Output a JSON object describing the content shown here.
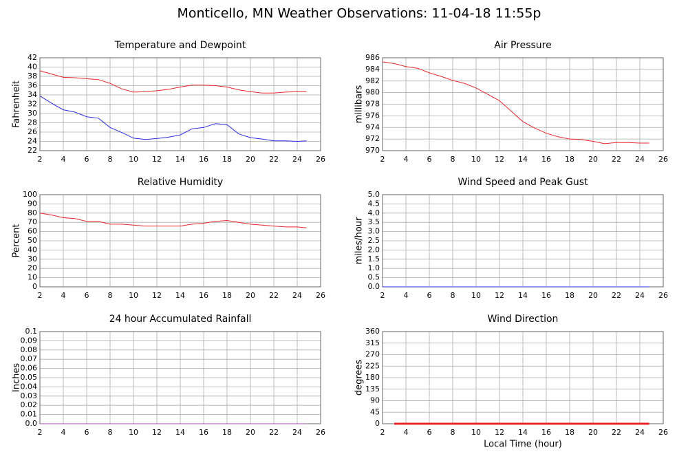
{
  "title": "Monticello, MN Weather Observations: 11-04-18 11:55p",
  "chart_data": [
    {
      "type": "line",
      "title": "Temperature and Dewpoint",
      "ylabel": "Fahrenheit",
      "x": [
        2,
        3,
        4,
        5,
        6,
        7,
        8,
        9,
        10,
        11,
        12,
        13,
        14,
        15,
        16,
        17,
        18,
        19,
        20,
        21,
        22,
        23,
        24,
        24.8
      ],
      "series": [
        {
          "color": "#e8262a",
          "values": [
            39.2,
            38.5,
            37.8,
            37.7,
            37.5,
            37.3,
            36.5,
            35.3,
            34.6,
            34.7,
            34.9,
            35.2,
            35.7,
            36.1,
            36.1,
            36.0,
            35.7,
            35.1,
            34.7,
            34.4,
            34.4,
            34.6,
            34.7,
            34.7
          ]
        },
        {
          "color": "#2a2ae0",
          "values": [
            33.8,
            32.2,
            30.8,
            30.3,
            29.3,
            29.0,
            27.0,
            25.9,
            24.7,
            24.4,
            24.6,
            24.9,
            25.4,
            26.7,
            27.0,
            27.8,
            27.6,
            25.6,
            24.8,
            24.5,
            24.1,
            24.1,
            24.0,
            24.1
          ]
        }
      ],
      "xlim": [
        2,
        26
      ],
      "ylim": [
        22,
        42
      ],
      "xticks": [
        2,
        4,
        6,
        8,
        10,
        12,
        14,
        16,
        18,
        20,
        22,
        24,
        26
      ],
      "yticks": [
        22,
        24,
        26,
        28,
        30,
        32,
        34,
        36,
        38,
        40,
        42
      ],
      "grid": true
    },
    {
      "type": "line",
      "title": "Air Pressure",
      "ylabel": "millibars",
      "x": [
        2,
        3,
        4,
        5,
        6,
        7,
        8,
        9,
        10,
        11,
        12,
        13,
        14,
        15,
        16,
        17,
        18,
        19,
        20,
        21,
        22,
        23,
        24,
        24.8
      ],
      "series": [
        {
          "color": "#e8262a",
          "values": [
            985.3,
            985.0,
            984.5,
            984.2,
            983.4,
            982.8,
            982.1,
            981.6,
            980.8,
            979.7,
            978.6,
            976.8,
            975.0,
            973.9,
            973.0,
            972.4,
            972.0,
            971.9,
            971.6,
            971.2,
            971.4,
            971.4,
            971.3,
            971.3
          ]
        }
      ],
      "xlim": [
        2,
        26
      ],
      "ylim": [
        970,
        986
      ],
      "xticks": [
        2,
        4,
        6,
        8,
        10,
        12,
        14,
        16,
        18,
        20,
        22,
        24,
        26
      ],
      "yticks": [
        970,
        972,
        974,
        976,
        978,
        980,
        982,
        984,
        986
      ],
      "grid": true
    },
    {
      "type": "line",
      "title": "Relative Humidity",
      "ylabel": "Percent",
      "x": [
        2,
        3,
        4,
        5,
        6,
        7,
        8,
        9,
        10,
        11,
        12,
        13,
        14,
        15,
        16,
        17,
        18,
        19,
        20,
        21,
        22,
        23,
        24,
        24.8
      ],
      "series": [
        {
          "color": "#e8262a",
          "values": [
            80,
            78,
            75,
            74,
            71,
            71,
            68,
            68,
            67,
            66,
            66,
            66,
            66,
            68,
            69,
            71,
            72,
            70,
            68,
            67,
            66,
            65,
            65,
            64
          ]
        }
      ],
      "xlim": [
        2,
        26
      ],
      "ylim": [
        0,
        100
      ],
      "xticks": [
        2,
        4,
        6,
        8,
        10,
        12,
        14,
        16,
        18,
        20,
        22,
        24,
        26
      ],
      "yticks": [
        0,
        10,
        20,
        30,
        40,
        50,
        60,
        70,
        80,
        90,
        100
      ],
      "grid": true
    },
    {
      "type": "line",
      "title": "Wind Speed and Peak Gust",
      "ylabel": "miles/hour",
      "x": [
        2,
        24.8
      ],
      "series": [
        {
          "color": "#e8262a",
          "values": [
            0,
            0
          ]
        },
        {
          "color": "#2a2ae0",
          "values": [
            0,
            0
          ]
        }
      ],
      "xlim": [
        2,
        26
      ],
      "ylim": [
        0,
        5
      ],
      "xticks": [
        2,
        4,
        6,
        8,
        10,
        12,
        14,
        16,
        18,
        20,
        22,
        24,
        26
      ],
      "yticks": [
        {
          "value": 0,
          "label": "0.0"
        },
        0.5,
        {
          "value": 1,
          "label": "1.0"
        },
        1.5,
        {
          "value": 2,
          "label": "2.0"
        },
        2.5,
        {
          "value": 3,
          "label": "3.0"
        },
        3.5,
        {
          "value": 4,
          "label": "4.0"
        },
        4.5,
        {
          "value": 5,
          "label": "5.0"
        }
      ],
      "grid": true
    },
    {
      "type": "line",
      "title": "24 hour Accumulated Rainfall",
      "ylabel": "Inches",
      "x": [
        2,
        24.8
      ],
      "series": [
        {
          "color": "#b040c0",
          "values": [
            0,
            0
          ]
        }
      ],
      "xlim": [
        2,
        26
      ],
      "ylim": [
        0,
        0.1
      ],
      "xticks": [
        2,
        4,
        6,
        8,
        10,
        12,
        14,
        16,
        18,
        20,
        22,
        24,
        26
      ],
      "yticks": [
        {
          "value": 0,
          "label": "0.0"
        },
        0.01,
        0.02,
        0.03,
        0.04,
        0.05,
        0.06,
        0.07,
        0.08,
        0.09,
        0.1
      ],
      "grid": true
    },
    {
      "type": "line",
      "title": "Wind Direction",
      "ylabel": "degrees",
      "xlabel": "Local Time (hour)",
      "x": [
        3,
        24.8
      ],
      "series": [
        {
          "color": "#e8262a",
          "line_width": 3,
          "values": [
            0,
            0
          ]
        }
      ],
      "xlim": [
        2,
        26
      ],
      "ylim": [
        0,
        360
      ],
      "xticks": [
        2,
        4,
        6,
        8,
        10,
        12,
        14,
        16,
        18,
        20,
        22,
        24,
        26
      ],
      "yticks": [
        0,
        45,
        90,
        135,
        180,
        225,
        270,
        315,
        360
      ],
      "grid": true
    }
  ]
}
